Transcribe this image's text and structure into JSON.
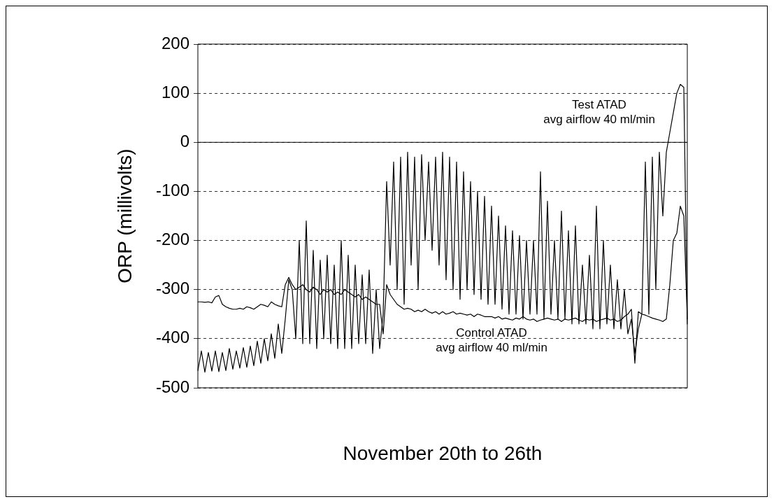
{
  "chart_data": {
    "type": "line",
    "xlabel": "November 20th to 26th",
    "ylabel": "ORP (millivolts)",
    "categories": [
      null,
      null,
      null,
      null,
      null,
      null,
      null,
      null,
      null,
      null,
      null,
      null,
      null,
      null,
      null,
      null,
      null,
      null,
      null,
      null,
      null,
      null,
      null,
      null,
      null,
      null,
      null,
      null,
      null,
      null,
      null,
      null,
      null,
      null,
      null,
      null,
      null,
      null,
      null,
      null,
      null,
      null,
      null,
      null,
      null,
      null,
      null,
      null,
      null,
      null,
      null,
      null,
      null,
      null,
      null,
      null,
      null,
      null,
      null,
      null,
      null,
      null,
      null,
      null,
      null,
      null,
      null,
      null,
      null,
      null,
      null,
      null,
      null,
      null,
      null,
      null,
      null,
      null,
      null,
      null,
      null,
      null,
      null,
      null,
      null,
      null,
      null,
      null,
      null,
      null,
      null,
      null,
      null,
      null,
      null,
      null,
      null,
      null,
      null,
      null,
      null,
      null,
      null,
      null,
      null,
      null,
      null,
      null,
      null,
      null,
      null,
      null,
      null,
      null,
      null,
      null,
      null,
      null,
      null,
      null,
      null,
      null,
      null,
      null,
      null,
      null,
      null,
      null,
      null,
      null,
      null,
      null,
      null,
      null,
      null,
      null,
      null,
      null,
      null,
      null,
      null
    ],
    "series": [
      {
        "name": "Test ATAD\navg airflow 40 ml/min",
        "color": "#000000",
        "values": [
          -465,
          -425,
          -468,
          -428,
          -466,
          -425,
          -467,
          -428,
          -465,
          -420,
          -462,
          -425,
          -460,
          -418,
          -458,
          -415,
          -455,
          -405,
          -450,
          -400,
          -445,
          -390,
          -440,
          -370,
          -430,
          -360,
          -280,
          -300,
          -400,
          -200,
          -410,
          -160,
          -410,
          -220,
          -420,
          -240,
          -400,
          -230,
          -410,
          -250,
          -420,
          -200,
          -420,
          -230,
          -420,
          -250,
          -410,
          -270,
          -410,
          -260,
          -430,
          -300,
          -420,
          -350,
          -80,
          -250,
          -40,
          -300,
          -30,
          -330,
          -20,
          -250,
          -30,
          -300,
          -25,
          -200,
          -40,
          -220,
          -30,
          -250,
          -20,
          -280,
          -30,
          -300,
          -40,
          -320,
          -60,
          -300,
          -80,
          -310,
          -100,
          -320,
          -110,
          -330,
          -130,
          -330,
          -150,
          -340,
          -170,
          -350,
          -180,
          -350,
          -190,
          -360,
          -200,
          -350,
          -200,
          -350,
          -60,
          -360,
          -120,
          -350,
          -200,
          -360,
          -140,
          -360,
          -180,
          -370,
          -170,
          -370,
          -250,
          -370,
          -230,
          -380,
          -130,
          -380,
          -200,
          -370,
          -250,
          -380,
          -280,
          -380,
          -300,
          -390,
          -360,
          -430,
          -380,
          -350,
          -40,
          -350,
          -30,
          -300,
          -20,
          -150,
          -20,
          20,
          60,
          100,
          118,
          112,
          -370
        ]
      },
      {
        "name": "Control ATAD\navg airflow 40 ml/min",
        "color": "#000000",
        "values": [
          -325,
          -325,
          -326,
          -325,
          -327,
          -315,
          -312,
          -330,
          -335,
          -338,
          -340,
          -340,
          -338,
          -340,
          -335,
          -337,
          -340,
          -335,
          -330,
          -332,
          -335,
          -325,
          -330,
          -333,
          -335,
          -290,
          -275,
          -290,
          -300,
          -295,
          -290,
          -300,
          -305,
          -295,
          -300,
          -310,
          -300,
          -305,
          -300,
          -310,
          -305,
          -310,
          -300,
          -305,
          -310,
          -315,
          -310,
          -320,
          -315,
          -320,
          -325,
          -330,
          -330,
          -390,
          -290,
          -310,
          -320,
          -330,
          -335,
          -340,
          -338,
          -340,
          -345,
          -342,
          -345,
          -340,
          -345,
          -348,
          -345,
          -350,
          -345,
          -350,
          -348,
          -345,
          -350,
          -348,
          -350,
          -352,
          -350,
          -355,
          -350,
          -352,
          -355,
          -355,
          -355,
          -358,
          -355,
          -360,
          -358,
          -360,
          -362,
          -358,
          -360,
          -355,
          -360,
          -362,
          -360,
          -365,
          -362,
          -360,
          -358,
          -360,
          -362,
          -360,
          -365,
          -360,
          -362,
          -360,
          -358,
          -362,
          -365,
          -360,
          -362,
          -360,
          -365,
          -362,
          -360,
          -358,
          -362,
          -360,
          -365,
          -362,
          -355,
          -350,
          -340,
          -450,
          -345,
          -350,
          -352,
          -355,
          -358,
          -360,
          -362,
          -365,
          -360,
          -290,
          -200,
          -185,
          -130,
          -150,
          -360
        ]
      }
    ],
    "ylim": [
      -500,
      200
    ],
    "yticks": [
      -500,
      -400,
      -300,
      -200,
      -100,
      0,
      100,
      200
    ],
    "ref_lines": [
      {
        "axis": "y",
        "value": 0,
        "color": "#000000",
        "line_style": "solid"
      }
    ],
    "grid": "y",
    "legend": false,
    "marker": "none",
    "line_style": "solid",
    "tick_labels": "y"
  }
}
